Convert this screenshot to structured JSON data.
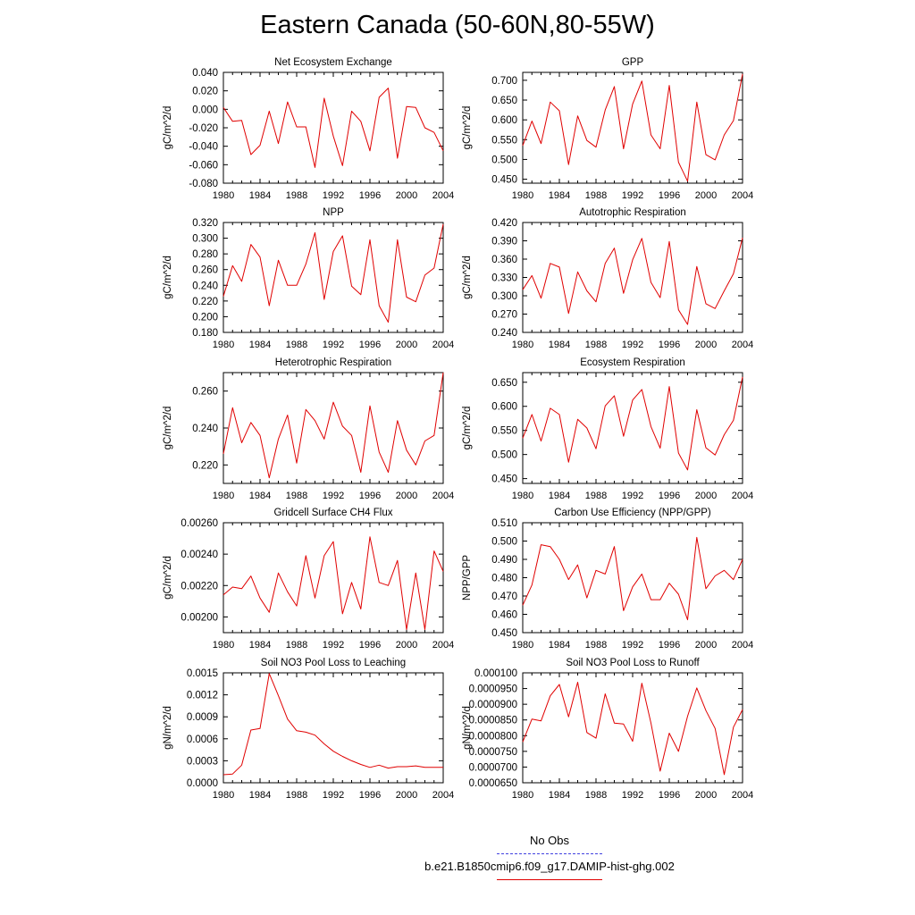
{
  "title": "Eastern Canada (50-60N,80-55W)",
  "legend": {
    "obs_label": "No Obs",
    "case_label": "b.e21.B1850cmip6.f09_g17.DAMIP-hist-ghg.002",
    "obs_color": "#4040e0",
    "case_color": "#e00000"
  },
  "chart_data": [
    {
      "type": "line",
      "title": "Net Ecosystem Exchange",
      "ylabel": "gC/m^2/d",
      "x": [
        1980,
        1981,
        1982,
        1983,
        1984,
        1985,
        1986,
        1987,
        1988,
        1989,
        1990,
        1991,
        1992,
        1993,
        1994,
        1995,
        1996,
        1997,
        1998,
        1999,
        2000,
        2001,
        2002,
        2003,
        2004
      ],
      "values": [
        0.002,
        -0.013,
        -0.012,
        -0.049,
        -0.039,
        -0.002,
        -0.037,
        0.008,
        -0.019,
        -0.019,
        -0.063,
        0.012,
        -0.029,
        -0.061,
        -0.002,
        -0.013,
        -0.045,
        0.013,
        0.023,
        -0.053,
        0.003,
        0.002,
        -0.02,
        -0.025,
        -0.045
      ],
      "ylim": [
        -0.08,
        0.04
      ],
      "yticks": [
        "0.040",
        "0.020",
        "0.000",
        "-0.020",
        "-0.040",
        "-0.060",
        "-0.080"
      ],
      "xticks": [
        "1980",
        "1984",
        "1988",
        "1992",
        "1996",
        "2000",
        "2004"
      ],
      "xlim": [
        1980,
        2004
      ]
    },
    {
      "type": "line",
      "title": "GPP",
      "ylabel": "gC/m^2/d",
      "x": [
        1980,
        1981,
        1982,
        1983,
        1984,
        1985,
        1986,
        1987,
        1988,
        1989,
        1990,
        1991,
        1992,
        1993,
        1994,
        1995,
        1996,
        1997,
        1998,
        1999,
        2000,
        2001,
        2002,
        2003,
        2004
      ],
      "values": [
        0.535,
        0.597,
        0.54,
        0.645,
        0.623,
        0.487,
        0.61,
        0.548,
        0.531,
        0.625,
        0.684,
        0.527,
        0.64,
        0.698,
        0.562,
        0.527,
        0.687,
        0.493,
        0.445,
        0.645,
        0.512,
        0.499,
        0.562,
        0.598,
        0.716
      ],
      "ylim": [
        0.44,
        0.72
      ],
      "yticks": [
        "0.700",
        "0.650",
        "0.600",
        "0.550",
        "0.500",
        "0.450"
      ],
      "xticks": [
        "1980",
        "1984",
        "1988",
        "1992",
        "1996",
        "2000",
        "2004"
      ],
      "xlim": [
        1980,
        2004
      ]
    },
    {
      "type": "line",
      "title": "NPP",
      "ylabel": "gC/m^2/d",
      "x": [
        1980,
        1981,
        1982,
        1983,
        1984,
        1985,
        1986,
        1987,
        1988,
        1989,
        1990,
        1991,
        1992,
        1993,
        1994,
        1995,
        1996,
        1997,
        1998,
        1999,
        2000,
        2001,
        2002,
        2003,
        2004
      ],
      "values": [
        0.226,
        0.265,
        0.245,
        0.292,
        0.276,
        0.214,
        0.272,
        0.24,
        0.24,
        0.267,
        0.307,
        0.222,
        0.283,
        0.303,
        0.239,
        0.228,
        0.298,
        0.214,
        0.193,
        0.298,
        0.225,
        0.219,
        0.253,
        0.262,
        0.318
      ],
      "ylim": [
        0.18,
        0.32
      ],
      "yticks": [
        "0.320",
        "0.300",
        "0.280",
        "0.260",
        "0.240",
        "0.220",
        "0.200",
        "0.180"
      ],
      "xticks": [
        "1980",
        "1984",
        "1988",
        "1992",
        "1996",
        "2000",
        "2004"
      ],
      "xlim": [
        1980,
        2004
      ]
    },
    {
      "type": "line",
      "title": "Autotrophic Respiration",
      "ylabel": "gC/m^2/d",
      "x": [
        1980,
        1981,
        1982,
        1983,
        1984,
        1985,
        1986,
        1987,
        1988,
        1989,
        1990,
        1991,
        1992,
        1993,
        1994,
        1995,
        1996,
        1997,
        1998,
        1999,
        2000,
        2001,
        2002,
        2003,
        2004
      ],
      "values": [
        0.31,
        0.333,
        0.296,
        0.353,
        0.347,
        0.271,
        0.339,
        0.308,
        0.29,
        0.353,
        0.378,
        0.304,
        0.359,
        0.394,
        0.322,
        0.297,
        0.389,
        0.277,
        0.253,
        0.348,
        0.287,
        0.279,
        0.308,
        0.336,
        0.395
      ],
      "ylim": [
        0.24,
        0.42
      ],
      "yticks": [
        "0.420",
        "0.390",
        "0.360",
        "0.330",
        "0.300",
        "0.270",
        "0.240"
      ],
      "xticks": [
        "1980",
        "1984",
        "1988",
        "1992",
        "1996",
        "2000",
        "2004"
      ],
      "xlim": [
        1980,
        2004
      ]
    },
    {
      "type": "line",
      "title": "Heterotrophic Respiration",
      "ylabel": "gC/m^2/d",
      "x": [
        1980,
        1981,
        1982,
        1983,
        1984,
        1985,
        1986,
        1987,
        1988,
        1989,
        1990,
        1991,
        1992,
        1993,
        1994,
        1995,
        1996,
        1997,
        1998,
        1999,
        2000,
        2001,
        2002,
        2003,
        2004
      ],
      "values": [
        0.226,
        0.251,
        0.232,
        0.243,
        0.236,
        0.213,
        0.234,
        0.247,
        0.221,
        0.25,
        0.244,
        0.234,
        0.254,
        0.241,
        0.236,
        0.216,
        0.252,
        0.227,
        0.216,
        0.244,
        0.228,
        0.22,
        0.233,
        0.236,
        0.27
      ],
      "ylim": [
        0.21,
        0.27
      ],
      "yticks": [
        "0.260",
        "0.240",
        "0.220"
      ],
      "xticks": [
        "1980",
        "1984",
        "1988",
        "1992",
        "1996",
        "2000",
        "2004"
      ],
      "xlim": [
        1980,
        2004
      ]
    },
    {
      "type": "line",
      "title": "Ecosystem Respiration",
      "ylabel": "gC/m^2/d",
      "x": [
        1980,
        1981,
        1982,
        1983,
        1984,
        1985,
        1986,
        1987,
        1988,
        1989,
        1990,
        1991,
        1992,
        1993,
        1994,
        1995,
        1996,
        1997,
        1998,
        1999,
        2000,
        2001,
        2002,
        2003,
        2004
      ],
      "values": [
        0.534,
        0.583,
        0.528,
        0.596,
        0.583,
        0.484,
        0.573,
        0.555,
        0.512,
        0.601,
        0.622,
        0.538,
        0.613,
        0.635,
        0.558,
        0.513,
        0.641,
        0.503,
        0.468,
        0.593,
        0.514,
        0.499,
        0.541,
        0.571,
        0.661
      ],
      "ylim": [
        0.44,
        0.67
      ],
      "yticks": [
        "0.650",
        "0.600",
        "0.550",
        "0.500",
        "0.450"
      ],
      "xticks": [
        "1980",
        "1984",
        "1988",
        "1992",
        "1996",
        "2000",
        "2004"
      ],
      "xlim": [
        1980,
        2004
      ]
    },
    {
      "type": "line",
      "title": "Gridcell Surface CH4 Flux",
      "ylabel": "gC/m^2/d",
      "x": [
        1980,
        1981,
        1982,
        1983,
        1984,
        1985,
        1986,
        1987,
        1988,
        1989,
        1990,
        1991,
        1992,
        1993,
        1994,
        1995,
        1996,
        1997,
        1998,
        1999,
        2000,
        2001,
        2002,
        2003,
        2004
      ],
      "values": [
        0.00214,
        0.00219,
        0.00218,
        0.00226,
        0.00212,
        0.00203,
        0.00228,
        0.00216,
        0.00207,
        0.00239,
        0.00212,
        0.00239,
        0.00248,
        0.00202,
        0.00222,
        0.00205,
        0.00251,
        0.00222,
        0.0022,
        0.00236,
        0.00192,
        0.00228,
        0.00192,
        0.00242,
        0.00229
      ],
      "ylim": [
        0.0019,
        0.0026
      ],
      "yticks": [
        "0.00260",
        "0.00240",
        "0.00220",
        "0.00200"
      ],
      "xticks": [
        "1980",
        "1984",
        "1988",
        "1992",
        "1996",
        "2000",
        "2004"
      ],
      "xlim": [
        1980,
        2004
      ]
    },
    {
      "type": "line",
      "title": "Carbon Use Efficiency (NPP/GPP)",
      "ylabel": "NPP/GPP",
      "x": [
        1980,
        1981,
        1982,
        1983,
        1984,
        1985,
        1986,
        1987,
        1988,
        1989,
        1990,
        1991,
        1992,
        1993,
        1994,
        1995,
        1996,
        1997,
        1998,
        1999,
        2000,
        2001,
        2002,
        2003,
        2004
      ],
      "values": [
        0.465,
        0.476,
        0.498,
        0.497,
        0.49,
        0.479,
        0.487,
        0.469,
        0.484,
        0.482,
        0.497,
        0.462,
        0.475,
        0.482,
        0.468,
        0.468,
        0.477,
        0.471,
        0.457,
        0.502,
        0.474,
        0.481,
        0.484,
        0.479,
        0.49
      ],
      "ylim": [
        0.45,
        0.51
      ],
      "yticks": [
        "0.510",
        "0.500",
        "0.490",
        "0.480",
        "0.470",
        "0.460",
        "0.450"
      ],
      "xticks": [
        "1980",
        "1984",
        "1988",
        "1992",
        "1996",
        "2000",
        "2004"
      ],
      "xlim": [
        1980,
        2004
      ]
    },
    {
      "type": "line",
      "title": "Soil NO3 Pool Loss to Leaching",
      "ylabel": "gN/m^2/d",
      "x": [
        1980,
        1981,
        1982,
        1983,
        1984,
        1985,
        1986,
        1987,
        1988,
        1989,
        1990,
        1991,
        1992,
        1993,
        1994,
        1995,
        1996,
        1997,
        1998,
        1999,
        2000,
        2001,
        2002,
        2003,
        2004
      ],
      "values": [
        0.00011,
        0.00012,
        0.00024,
        0.00072,
        0.00074,
        0.00149,
        0.00119,
        0.00087,
        0.00071,
        0.00069,
        0.00065,
        0.00053,
        0.00043,
        0.00036,
        0.0003,
        0.00025,
        0.00021,
        0.00024,
        0.0002,
        0.00022,
        0.00022,
        0.00023,
        0.00021,
        0.00021,
        0.00021
      ],
      "ylim": [
        0,
        0.0015
      ],
      "yticks": [
        "0.0015",
        "0.0012",
        "0.0009",
        "0.0006",
        "0.0003",
        "0.0000"
      ],
      "xticks": [
        "1980",
        "1984",
        "1988",
        "1992",
        "1996",
        "2000",
        "2004"
      ],
      "xlim": [
        1980,
        2004
      ]
    },
    {
      "type": "line",
      "title": "Soil NO3 Pool Loss to Runoff",
      "ylabel": "gN/m^2/d",
      "x": [
        1980,
        1981,
        1982,
        1983,
        1984,
        1985,
        1986,
        1987,
        1988,
        1989,
        1990,
        1991,
        1992,
        1993,
        1994,
        1995,
        1996,
        1997,
        1998,
        1999,
        2000,
        2001,
        2002,
        2003,
        2004
      ],
      "values": [
        7.8e-05,
        8.53e-05,
        8.47e-05,
        9.27e-05,
        9.63e-05,
        8.6e-05,
        9.7e-05,
        8.1e-05,
        7.92e-05,
        9.33e-05,
        8.4e-05,
        8.37e-05,
        7.82e-05,
        9.67e-05,
        8.4e-05,
        6.87e-05,
        8.08e-05,
        7.5e-05,
        8.62e-05,
        9.52e-05,
        8.8e-05,
        8.23e-05,
        6.76e-05,
        8.27e-05,
        8.83e-05
      ],
      "ylim": [
        6.5e-05,
        0.0001
      ],
      "yticks": [
        "0.000100",
        "0.0000950",
        "0.0000900",
        "0.0000850",
        "0.0000800",
        "0.0000750",
        "0.0000700",
        "0.0000650"
      ],
      "xticks": [
        "1980",
        "1984",
        "1988",
        "1992",
        "1996",
        "2000",
        "2004"
      ],
      "xlim": [
        1980,
        2004
      ]
    }
  ]
}
